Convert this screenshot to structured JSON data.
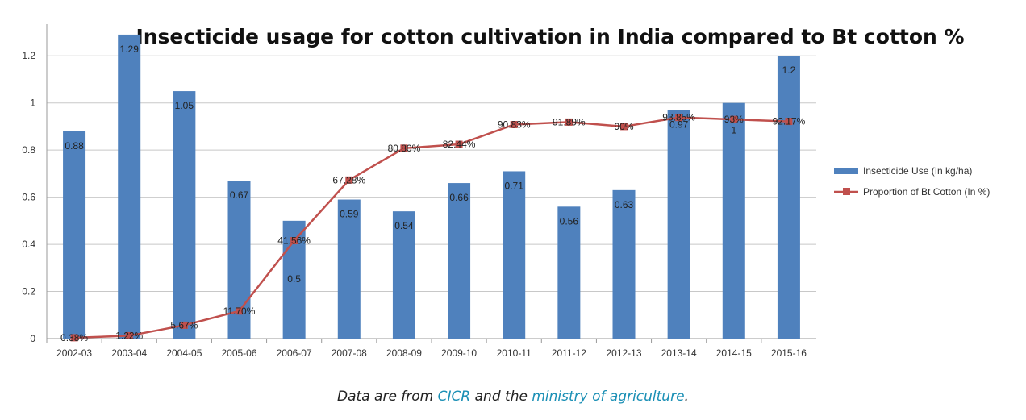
{
  "chart_data": {
    "type": "bar+line",
    "title": "Insecticide usage for cotton cultivation in India compared to Bt cotton %",
    "categories": [
      "2002-03",
      "2003-04",
      "2004-05",
      "2005-06",
      "2006-07",
      "2007-08",
      "2008-09",
      "2009-10",
      "2010-11",
      "2011-12",
      "2012-13",
      "2013-14",
      "2014-15",
      "2015-16"
    ],
    "ylim": [
      0,
      1.3
    ],
    "yticks": [
      "0",
      "0.2",
      "0.4",
      "0.6",
      "0.8",
      "1",
      "1.2"
    ],
    "ytick_values": [
      0,
      0.2,
      0.4,
      0.6,
      0.8,
      1.0,
      1.2
    ],
    "grid": true,
    "legend_position": "right",
    "series": [
      {
        "name": "Insecticide Use (In kg/ha)",
        "kind": "bar",
        "color": "#4f81bd",
        "values": [
          0.88,
          1.29,
          1.05,
          0.67,
          0.5,
          0.59,
          0.54,
          0.66,
          0.71,
          0.56,
          0.63,
          0.97,
          1.0,
          1.2
        ],
        "labels": [
          "0.88",
          "1.29",
          "1.05",
          "0.67",
          "0.5",
          "0.59",
          "0.54",
          "0.66",
          "0.71",
          "0.56",
          "0.63",
          "0.97",
          "1",
          "1.2"
        ]
      },
      {
        "name": "Proportion of Bt Cotton (In %)",
        "kind": "line",
        "color": "#c0504d",
        "values": [
          0.0038,
          0.0122,
          0.0567,
          0.117,
          0.4156,
          0.6728,
          0.808,
          0.8244,
          0.9083,
          0.9189,
          0.9,
          0.9385,
          0.93,
          0.9217
        ],
        "labels": [
          "0.38%",
          "1.22%",
          "5.67%",
          "11.70%",
          "41.56%",
          "67.28%",
          "80.80%",
          "82.44%",
          "90.83%",
          "91.89%",
          "90%",
          "93.85%",
          "93%",
          "92.17%"
        ]
      }
    ]
  },
  "caption": {
    "prefix": "Data are from ",
    "link1": "CICR",
    "middle": " and the ",
    "link2": "ministry of agriculture",
    "suffix": "."
  }
}
